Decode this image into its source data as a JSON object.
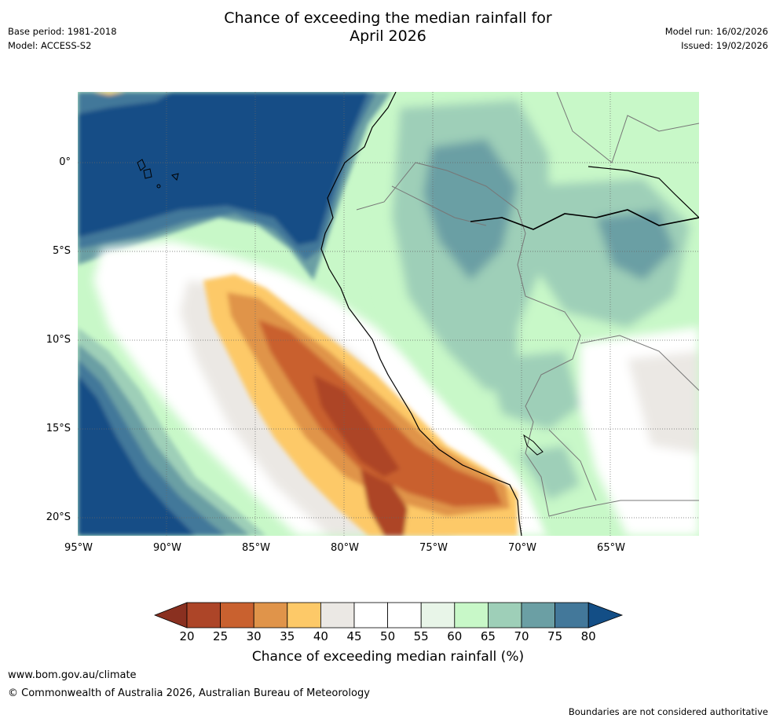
{
  "header": {
    "title_line1": "Chance of exceeding the median rainfall for",
    "title_line2": "April 2026",
    "base_period": "Base period: 1981-2018",
    "model": "Model: ACCESS-S2",
    "model_run": "Model run: 16/02/2026",
    "issued": "Issued: 19/02/2026"
  },
  "map": {
    "lat_labels": [
      "0°",
      "5°S",
      "10°S",
      "15°S",
      "20°S"
    ],
    "lon_labels": [
      "95°W",
      "90°W",
      "85°W",
      "80°W",
      "75°W",
      "70°W",
      "65°W"
    ]
  },
  "colorbar": {
    "ticks": [
      "20",
      "25",
      "30",
      "35",
      "40",
      "45",
      "50",
      "55",
      "60",
      "65",
      "70",
      "75",
      "80"
    ],
    "label": "Chance of exceeding median rainfall (%)",
    "colors": {
      "lt20": "#8a3020",
      "c20": "#ad4528",
      "c25": "#c9612f",
      "c30": "#e0944a",
      "c35": "#fdc968",
      "c40": "#ebe8e4",
      "c45": "#ffffff",
      "c50": "#ffffff",
      "c55": "#e8f5e8",
      "c60": "#c8f8c8",
      "c65": "#9ecfb8",
      "c70": "#6b9fa4",
      "c75": "#43789a",
      "gt80": "#134e86"
    }
  },
  "footer": {
    "url": "www.bom.gov.au/climate",
    "copyright": "© Commonwealth of Australia 2026, Australian Bureau of Meteorology",
    "disclaimer": "Boundaries are not considered authoritative"
  }
}
